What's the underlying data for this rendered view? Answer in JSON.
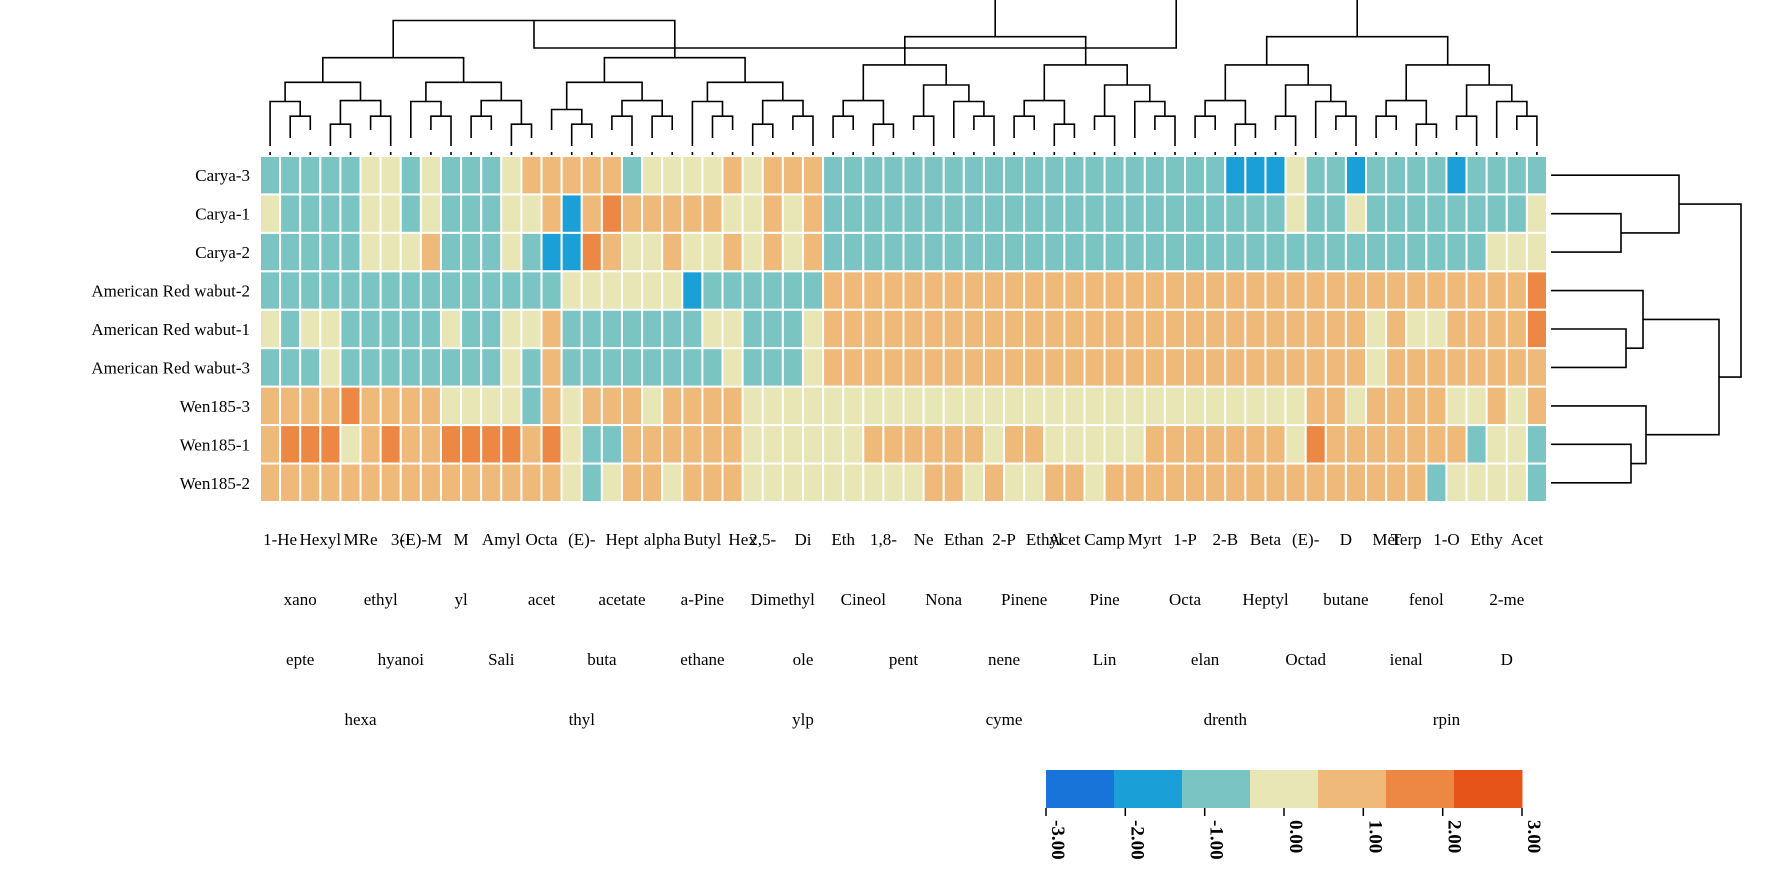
{
  "chart_data": {
    "type": "heatmap",
    "title": "",
    "rows": [
      "Carya-3",
      "Carya-1",
      "Carya-2",
      "American Red wabut-2",
      "American Red wabut-1",
      "American Red wabut-3",
      "Wen185-3",
      "Wen185-1",
      "Wen185-2"
    ],
    "column_count": 64,
    "column_label_fragments": [
      "1-He",
      "Hexyl",
      "MRe",
      "3-I",
      "(E)-M",
      "M",
      "Amyl",
      "Octa",
      "(E)-",
      "Hept",
      "alpha",
      "Butyl",
      "Hex",
      "2,5-",
      "Di",
      "Eth",
      "1,8-",
      "Ne",
      "Ethan",
      "2-P",
      "Ethyl",
      "Acet",
      "Camp",
      "Myrt",
      "1-P",
      "2-B",
      "Beta",
      "(E)-",
      "D",
      "Met",
      "Terp",
      "1-O",
      "Ethy",
      "Acet",
      "xano",
      "ethyl",
      "yl",
      "acet",
      "acetate",
      "a-Pine",
      "Dimethyl",
      "Cineol",
      "Nona",
      "Pinene",
      "Pine",
      "Octa",
      "Heptyl",
      "butane",
      "fenol",
      "2-me",
      "epte",
      "hyanoi",
      "Sali",
      "buta",
      "ethane",
      "ole",
      "pent",
      "nene",
      "Lin",
      "elan",
      "Octad",
      "ienal",
      "D",
      "hexa",
      "thyl",
      "ylp",
      "cyme",
      "drenth",
      "rpin"
    ],
    "values": [
      [
        -1,
        -1,
        -1,
        -1,
        -1,
        0,
        0,
        -1,
        0,
        -1,
        -1,
        -1,
        0,
        1,
        1,
        1,
        1,
        1,
        -1,
        0,
        0,
        0,
        0,
        1,
        0,
        1,
        1,
        1,
        -1,
        -1,
        -1,
        -1,
        -1,
        -1,
        -1,
        -1,
        -1,
        -1,
        -1,
        -1,
        -1,
        -1,
        -1,
        -1,
        -1,
        -1,
        -1,
        -1,
        -2,
        -2,
        -2,
        0,
        -1,
        -1,
        -2,
        -1,
        -1,
        -1,
        -1,
        -2,
        -1,
        -1,
        -1,
        -1
      ],
      [
        0,
        -1,
        -1,
        -1,
        -1,
        0,
        0,
        -1,
        0,
        -1,
        -1,
        -1,
        0,
        0,
        1,
        -2,
        1,
        2,
        1,
        1,
        1,
        1,
        1,
        0,
        0,
        1,
        0,
        1,
        -1,
        -1,
        -1,
        -1,
        -1,
        -1,
        -1,
        -1,
        -1,
        -1,
        -1,
        -1,
        -1,
        -1,
        -1,
        -1,
        -1,
        -1,
        -1,
        -1,
        -1,
        -1,
        -1,
        0,
        -1,
        -1,
        0,
        -1,
        -1,
        -1,
        -1,
        -1,
        -1,
        -1,
        -1,
        0
      ],
      [
        -1,
        -1,
        -1,
        -1,
        -1,
        0,
        0,
        0,
        1,
        -1,
        -1,
        -1,
        0,
        -1,
        -2,
        -2,
        2,
        1,
        0,
        0,
        1,
        0,
        0,
        1,
        0,
        1,
        0,
        1,
        -1,
        -1,
        -1,
        -1,
        -1,
        -1,
        -1,
        -1,
        -1,
        -1,
        -1,
        -1,
        -1,
        -1,
        -1,
        -1,
        -1,
        -1,
        -1,
        -1,
        -1,
        -1,
        -1,
        -1,
        -1,
        -1,
        -1,
        -1,
        -1,
        -1,
        -1,
        -1,
        -1,
        0,
        0,
        0
      ],
      [
        -1,
        -1,
        -1,
        -1,
        -1,
        -1,
        -1,
        -1,
        -1,
        -1,
        -1,
        -1,
        -1,
        -1,
        -1,
        0,
        0,
        0,
        0,
        0,
        0,
        -2,
        -1,
        -1,
        -1,
        -1,
        -1,
        -1,
        1,
        1,
        1,
        1,
        1,
        1,
        1,
        1,
        1,
        1,
        1,
        1,
        1,
        1,
        1,
        1,
        1,
        1,
        1,
        1,
        1,
        1,
        1,
        1,
        1,
        1,
        1,
        1,
        1,
        1,
        1,
        1,
        1,
        1,
        1,
        2
      ],
      [
        0,
        -1,
        0,
        0,
        -1,
        -1,
        -1,
        -1,
        -1,
        0,
        -1,
        -1,
        0,
        0,
        1,
        -1,
        -1,
        -1,
        -1,
        -1,
        -1,
        -1,
        0,
        0,
        -1,
        -1,
        -1,
        0,
        1,
        1,
        1,
        1,
        1,
        1,
        1,
        1,
        1,
        1,
        1,
        1,
        1,
        1,
        1,
        1,
        1,
        1,
        1,
        1,
        1,
        1,
        1,
        1,
        1,
        1,
        1,
        0,
        1,
        0,
        0,
        1,
        1,
        1,
        1,
        2
      ],
      [
        -1,
        -1,
        -1,
        0,
        -1,
        -1,
        -1,
        -1,
        -1,
        -1,
        -1,
        -1,
        0,
        -1,
        1,
        -1,
        -1,
        -1,
        -1,
        -1,
        -1,
        -1,
        -1,
        0,
        -1,
        -1,
        -1,
        0,
        1,
        1,
        1,
        1,
        1,
        1,
        1,
        1,
        1,
        1,
        1,
        1,
        1,
        1,
        1,
        1,
        1,
        1,
        1,
        1,
        1,
        1,
        1,
        1,
        1,
        1,
        1,
        0,
        1,
        1,
        1,
        1,
        1,
        1,
        1,
        1
      ],
      [
        1,
        1,
        1,
        1,
        2,
        1,
        1,
        1,
        1,
        0,
        0,
        0,
        0,
        -1,
        1,
        0,
        1,
        1,
        1,
        0,
        1,
        1,
        1,
        1,
        0,
        0,
        0,
        0,
        0,
        0,
        0,
        0,
        0,
        0,
        0,
        0,
        0,
        0,
        0,
        0,
        0,
        0,
        0,
        0,
        0,
        0,
        0,
        0,
        0,
        0,
        0,
        0,
        1,
        1,
        0,
        1,
        1,
        1,
        1,
        0,
        0,
        1,
        0,
        1
      ],
      [
        1,
        2,
        2,
        2,
        0,
        1,
        2,
        1,
        1,
        2,
        2,
        2,
        2,
        1,
        2,
        0,
        -1,
        -1,
        1,
        1,
        1,
        1,
        1,
        1,
        0,
        0,
        0,
        0,
        0,
        0,
        1,
        1,
        1,
        1,
        1,
        1,
        0,
        1,
        1,
        0,
        0,
        0,
        0,
        0,
        1,
        1,
        1,
        1,
        1,
        1,
        1,
        0,
        2,
        1,
        1,
        1,
        1,
        1,
        1,
        1,
        -1,
        0,
        0,
        -1
      ],
      [
        1,
        1,
        1,
        1,
        1,
        1,
        1,
        1,
        1,
        1,
        1,
        1,
        1,
        1,
        1,
        0,
        -1,
        0,
        1,
        1,
        0,
        1,
        1,
        1,
        0,
        0,
        0,
        0,
        0,
        0,
        0,
        0,
        0,
        1,
        1,
        0,
        1,
        0,
        0,
        1,
        1,
        0,
        1,
        1,
        1,
        1,
        1,
        1,
        1,
        1,
        1,
        1,
        1,
        1,
        1,
        1,
        1,
        1,
        -1,
        0,
        0,
        0,
        0,
        -1
      ]
    ],
    "xlabel": "",
    "ylabel": "",
    "legend": {
      "placement": "bottom-right",
      "ticks": [
        "-3.00",
        "-2.00",
        "-1.00",
        "0.00",
        "1.00",
        "2.00",
        "3.00"
      ],
      "colors": [
        "#1874d8",
        "#1aa0d6",
        "#7bc4c4",
        "#e8e6b4",
        "#efb97a",
        "#ec8844",
        "#e7541a"
      ]
    },
    "grid": true,
    "dendrograms": [
      "top",
      "right"
    ]
  }
}
